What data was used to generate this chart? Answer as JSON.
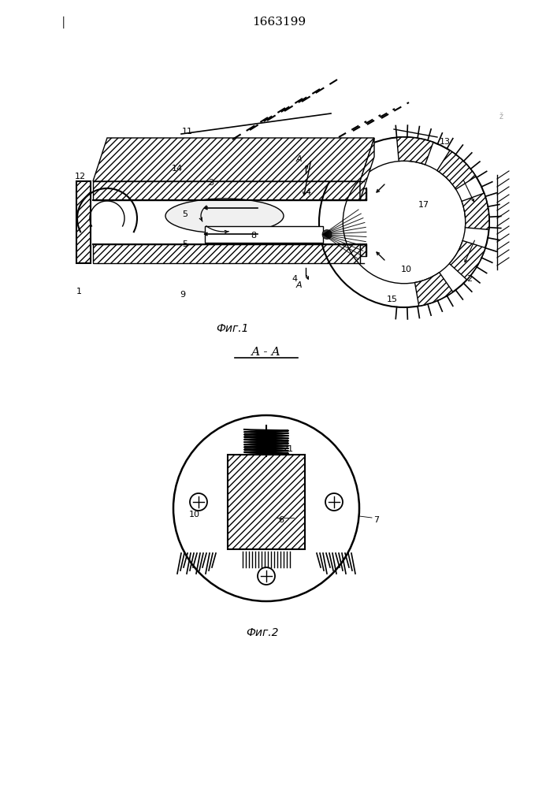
{
  "title": "1663199",
  "fig1_caption": "Фиг.1",
  "fig2_caption": "Фиг.2",
  "section_label": "А - А",
  "bg_color": "#ffffff",
  "line_color": "#000000",
  "fig_width": 7.07,
  "fig_height": 10.0,
  "dpi": 100
}
